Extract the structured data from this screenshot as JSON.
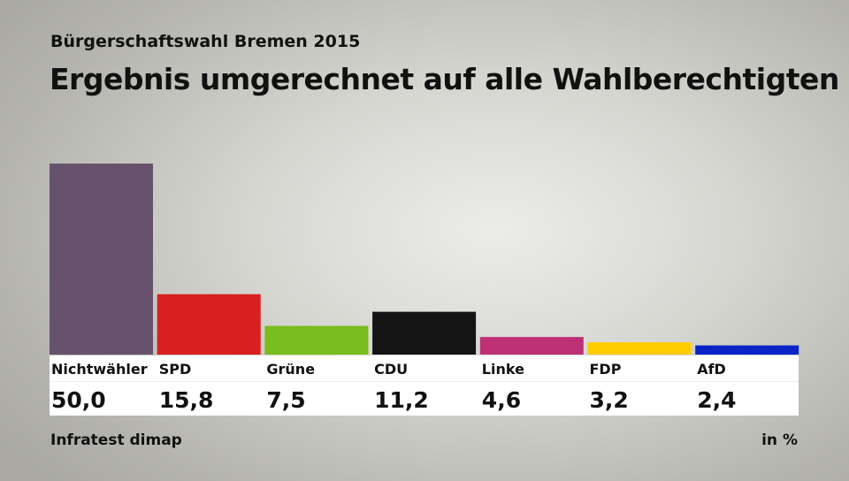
{
  "chart_data": {
    "type": "bar",
    "subtitle": "Bürgerschaftswahl Bremen 2015",
    "title": "Ergebnis umgerechnet auf alle Wahlberechtigten",
    "categories": [
      "Nichtwähler",
      "SPD",
      "Grüne",
      "CDU",
      "Linke",
      "FDP",
      "AfD"
    ],
    "values": [
      50.0,
      15.8,
      7.5,
      11.2,
      4.6,
      3.2,
      2.4
    ],
    "value_labels": [
      "50,0",
      "15,8",
      "7,5",
      "11,2",
      "4,6",
      "3,2",
      "2,4"
    ],
    "colors": [
      "#66526d",
      "#d91f20",
      "#78bc1d",
      "#141414",
      "#be3075",
      "#ffcc00",
      "#0a24c8"
    ],
    "ylim": [
      0,
      50
    ],
    "grid": false,
    "source": "Infratest dimap",
    "unit": "in %"
  }
}
